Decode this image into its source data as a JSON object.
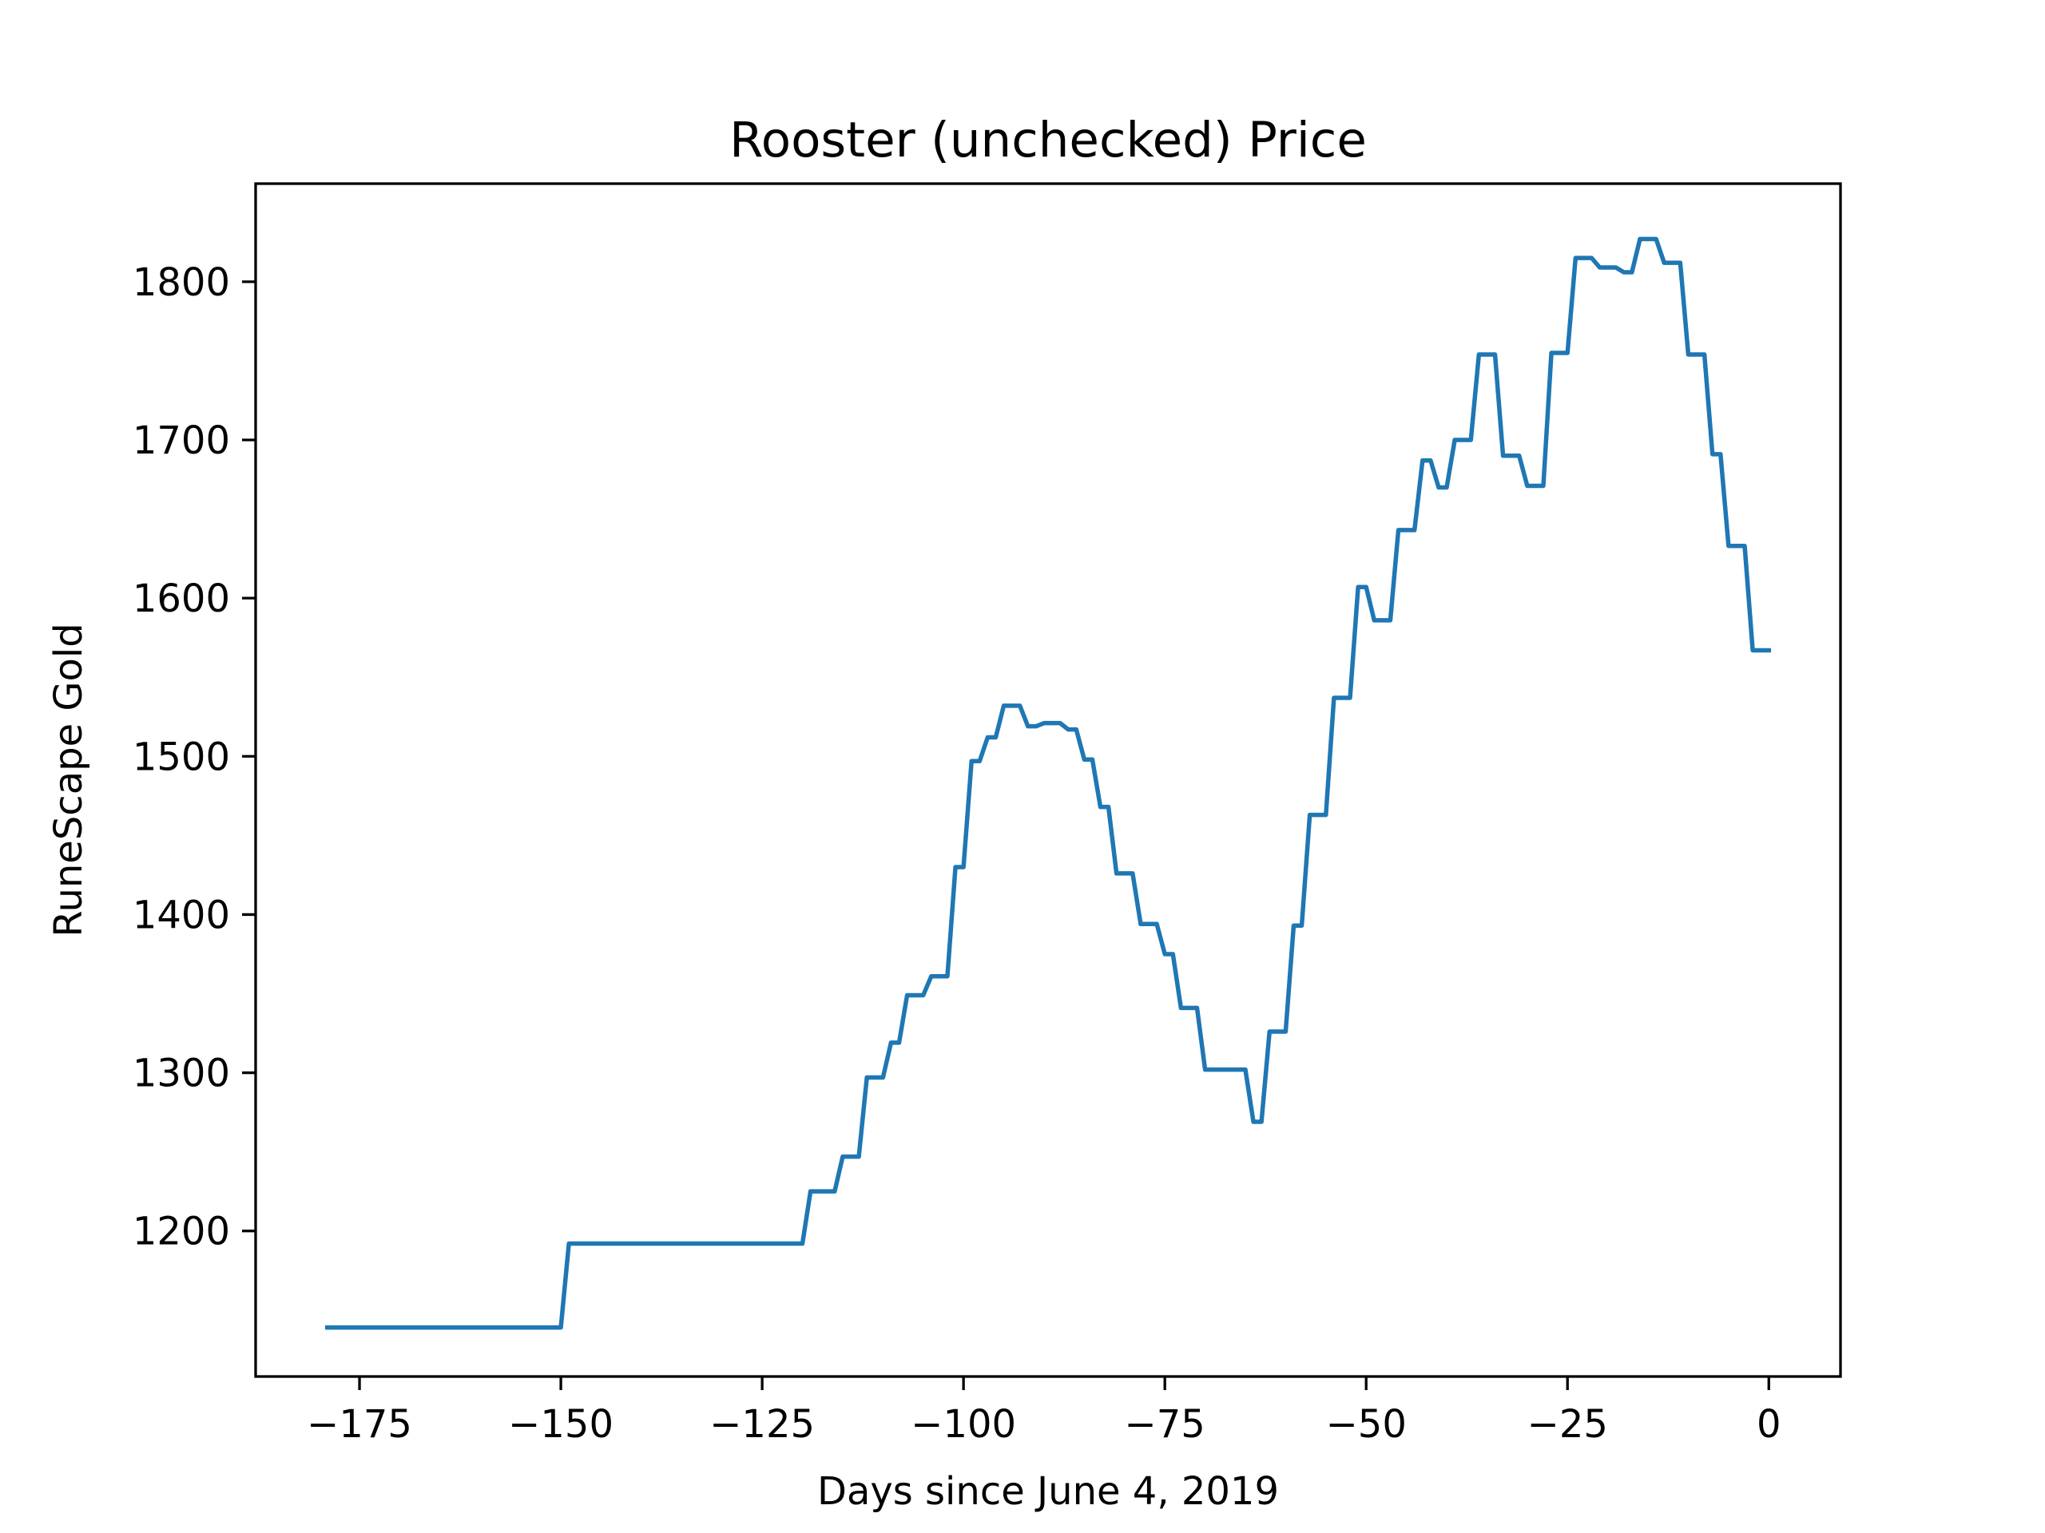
{
  "chart_data": {
    "type": "line",
    "title": "Rooster (unchecked) Price",
    "xlabel": "Days since June 4, 2019",
    "ylabel": "RuneScape Gold",
    "xlim": [
      -187.9,
      8.9
    ],
    "ylim": [
      1108,
      1862
    ],
    "xticks": [
      -175,
      -150,
      -125,
      -100,
      -75,
      -50,
      -25,
      0
    ],
    "xtick_labels": [
      "−175",
      "−150",
      "−125",
      "−100",
      "−75",
      "−50",
      "−25",
      "0"
    ],
    "yticks": [
      1200,
      1300,
      1400,
      1500,
      1600,
      1700,
      1800
    ],
    "ytick_labels": [
      "1200",
      "1300",
      "1400",
      "1500",
      "1600",
      "1700",
      "1800"
    ],
    "grid": false,
    "legend": "none",
    "series": [
      {
        "color": "#1f77b4",
        "points": [
          [
            -179,
            1139
          ],
          [
            -150,
            1139
          ],
          [
            -149,
            1192
          ],
          [
            -120,
            1192
          ],
          [
            -119,
            1225
          ],
          [
            -116,
            1225
          ],
          [
            -115,
            1247
          ],
          [
            -113,
            1247
          ],
          [
            -112,
            1297
          ],
          [
            -110,
            1297
          ],
          [
            -109,
            1319
          ],
          [
            -108,
            1319
          ],
          [
            -107,
            1349
          ],
          [
            -105,
            1349
          ],
          [
            -104,
            1361
          ],
          [
            -102,
            1361
          ],
          [
            -101,
            1430
          ],
          [
            -100,
            1430
          ],
          [
            -99,
            1497
          ],
          [
            -98,
            1497
          ],
          [
            -97,
            1512
          ],
          [
            -96,
            1512
          ],
          [
            -95,
            1532
          ],
          [
            -93,
            1532
          ],
          [
            -92,
            1519
          ],
          [
            -91,
            1519
          ],
          [
            -90,
            1521
          ],
          [
            -88,
            1521
          ],
          [
            -87,
            1517
          ],
          [
            -86,
            1517
          ],
          [
            -85,
            1498
          ],
          [
            -84,
            1498
          ],
          [
            -83,
            1468
          ],
          [
            -82,
            1468
          ],
          [
            -81,
            1426
          ],
          [
            -79,
            1426
          ],
          [
            -78,
            1394
          ],
          [
            -76,
            1394
          ],
          [
            -75,
            1375
          ],
          [
            -74,
            1375
          ],
          [
            -73,
            1341
          ],
          [
            -71,
            1341
          ],
          [
            -70,
            1302
          ],
          [
            -65,
            1302
          ],
          [
            -64,
            1269
          ],
          [
            -63,
            1269
          ],
          [
            -62,
            1326
          ],
          [
            -60,
            1326
          ],
          [
            -59,
            1393
          ],
          [
            -58,
            1393
          ],
          [
            -57,
            1463
          ],
          [
            -55,
            1463
          ],
          [
            -54,
            1537
          ],
          [
            -52,
            1537
          ],
          [
            -51,
            1607
          ],
          [
            -50,
            1607
          ],
          [
            -49,
            1586
          ],
          [
            -47,
            1586
          ],
          [
            -46,
            1643
          ],
          [
            -44,
            1643
          ],
          [
            -43,
            1687
          ],
          [
            -42,
            1687
          ],
          [
            -41,
            1670
          ],
          [
            -40,
            1670
          ],
          [
            -39,
            1700
          ],
          [
            -37,
            1700
          ],
          [
            -36,
            1754
          ],
          [
            -34,
            1754
          ],
          [
            -33,
            1690
          ],
          [
            -31,
            1690
          ],
          [
            -30,
            1671
          ],
          [
            -28,
            1671
          ],
          [
            -27,
            1755
          ],
          [
            -25,
            1755
          ],
          [
            -24,
            1815
          ],
          [
            -22,
            1815
          ],
          [
            -21,
            1809
          ],
          [
            -19,
            1809
          ],
          [
            -18,
            1806
          ],
          [
            -17,
            1806
          ],
          [
            -16,
            1827
          ],
          [
            -14,
            1827
          ],
          [
            -13,
            1812
          ],
          [
            -11,
            1812
          ],
          [
            -10,
            1754
          ],
          [
            -8,
            1754
          ],
          [
            -7,
            1691
          ],
          [
            -6,
            1691
          ],
          [
            -5,
            1633
          ],
          [
            -3,
            1633
          ],
          [
            -2,
            1567
          ],
          [
            0,
            1567
          ]
        ]
      }
    ]
  }
}
